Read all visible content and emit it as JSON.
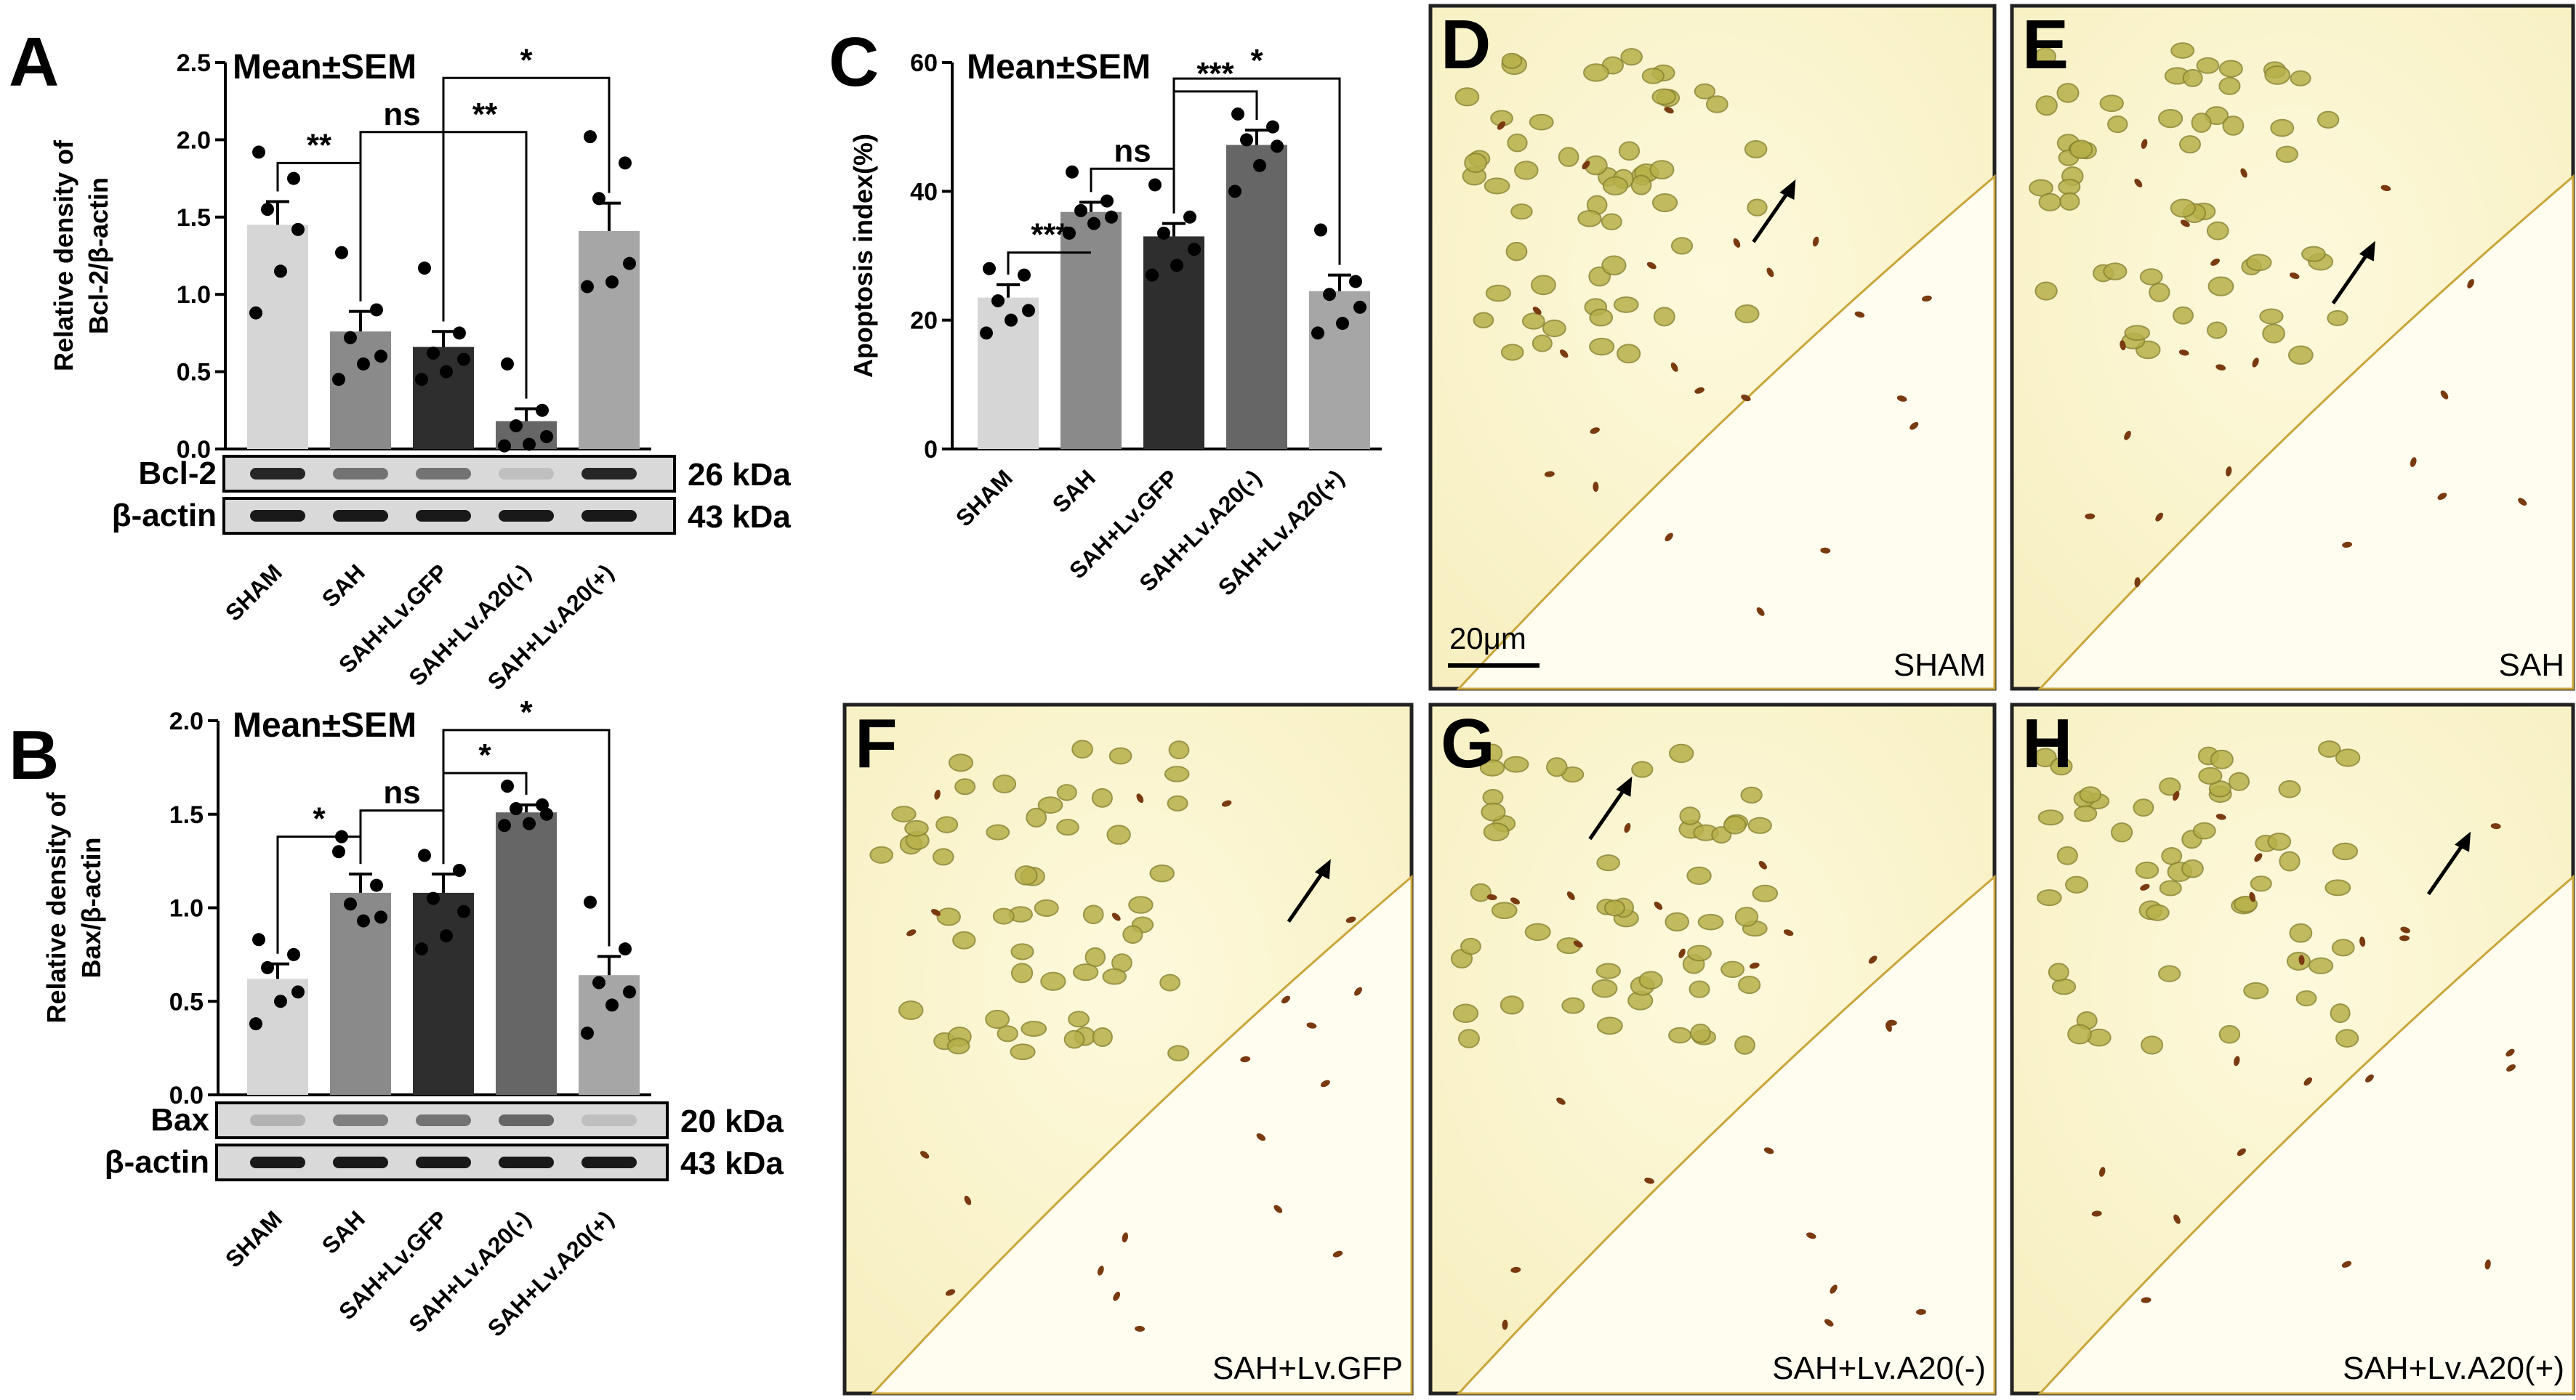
{
  "figure": {
    "letters": {
      "A": "A",
      "B": "B",
      "C": "C",
      "D": "D",
      "E": "E",
      "F": "F",
      "G": "G",
      "H": "H"
    },
    "scale_bar_label": "20μm",
    "micrographs": [
      {
        "panel": "D",
        "label": "SHAM"
      },
      {
        "panel": "E",
        "label": "SAH"
      },
      {
        "panel": "F",
        "label": "SAH+Lv.GFP"
      },
      {
        "panel": "G",
        "label": "SAH+Lv.A20(-)"
      },
      {
        "panel": "H",
        "label": "SAH+Lv.A20(+)"
      }
    ],
    "colors": {
      "bar_fills": [
        "#d6d6d6",
        "#8a8a8a",
        "#2e2e2e",
        "#666666",
        "#a6a6a6"
      ],
      "tissue": "#fbf6d0",
      "nucleus": "#b7b04a",
      "apoptotic": "#7a3a10"
    }
  },
  "chart_data": [
    {
      "panel": "A",
      "type": "bar",
      "annotation": "Mean±SEM",
      "ylabel_line1": "Relative density of",
      "ylabel_line2": "Bcl-2/β-actin",
      "ylim": [
        0,
        2.5
      ],
      "yticks": [
        "0.0",
        "0.5",
        "1.0",
        "1.5",
        "2.0",
        "2.5"
      ],
      "categories": [
        "SHAM",
        "SAH",
        "SAH+Lv.GFP",
        "SAH+Lv.A20(-)",
        "SAH+Lv.A20(+)"
      ],
      "values": [
        1.45,
        0.76,
        0.66,
        0.18,
        1.41
      ],
      "sem": [
        0.15,
        0.13,
        0.1,
        0.08,
        0.18
      ],
      "points": [
        [
          1.92,
          1.75,
          1.55,
          1.42,
          1.15,
          0.88
        ],
        [
          1.27,
          0.9,
          0.72,
          0.6,
          0.55,
          0.45
        ],
        [
          1.17,
          0.75,
          0.62,
          0.58,
          0.5,
          0.45
        ],
        [
          0.55,
          0.25,
          0.15,
          0.08,
          0.03,
          0.02
        ],
        [
          2.02,
          1.85,
          1.62,
          1.2,
          1.08,
          1.05
        ]
      ],
      "significance": [
        {
          "from": 0,
          "to": 1,
          "label": "**"
        },
        {
          "from": 1,
          "to": 2,
          "label": "ns"
        },
        {
          "from": 2,
          "to": 3,
          "label": "**"
        },
        {
          "from": 2,
          "to": 4,
          "label": "*"
        }
      ],
      "blot": {
        "rows": [
          {
            "label": "Bcl-2",
            "kda": "26 kDa",
            "intensities": [
              0.85,
              0.55,
              0.55,
              0.25,
              0.85
            ]
          },
          {
            "label": "β-actin",
            "kda": "43 kDa",
            "intensities": [
              0.9,
              0.9,
              0.9,
              0.9,
              0.9
            ]
          }
        ]
      }
    },
    {
      "panel": "B",
      "type": "bar",
      "annotation": "Mean±SEM",
      "ylabel_line1": "Relative density of",
      "ylabel_line2": "Bax/β-actin",
      "ylim": [
        0,
        2.0
      ],
      "yticks": [
        "0.0",
        "0.5",
        "1.0",
        "1.5",
        "2.0"
      ],
      "categories": [
        "SHAM",
        "SAH",
        "SAH+Lv.GFP",
        "SAH+Lv.A20(-)",
        "SAH+Lv.A20(+)"
      ],
      "values": [
        0.62,
        1.08,
        1.08,
        1.51,
        0.64
      ],
      "sem": [
        0.08,
        0.1,
        0.1,
        0.04,
        0.1
      ],
      "points": [
        [
          0.83,
          0.75,
          0.68,
          0.55,
          0.5,
          0.38
        ],
        [
          1.38,
          1.12,
          1.02,
          0.95,
          0.93,
          1.3
        ],
        [
          1.28,
          1.2,
          1.05,
          0.98,
          0.85,
          0.78
        ],
        [
          1.65,
          1.55,
          1.53,
          1.5,
          1.45,
          1.44
        ],
        [
          1.03,
          0.78,
          0.6,
          0.55,
          0.48,
          0.33
        ]
      ],
      "significance": [
        {
          "from": 0,
          "to": 1,
          "label": "*"
        },
        {
          "from": 1,
          "to": 2,
          "label": "ns"
        },
        {
          "from": 2,
          "to": 3,
          "label": "*"
        },
        {
          "from": 2,
          "to": 4,
          "label": "*"
        }
      ],
      "blot": {
        "rows": [
          {
            "label": "Bax",
            "kda": "20 kDa",
            "intensities": [
              0.3,
              0.5,
              0.55,
              0.6,
              0.25
            ]
          },
          {
            "label": "β-actin",
            "kda": "43 kDa",
            "intensities": [
              0.9,
              0.9,
              0.9,
              0.9,
              0.9
            ]
          }
        ]
      }
    },
    {
      "panel": "C",
      "type": "bar",
      "annotation": "Mean±SEM",
      "ylabel_line1": "Apoptosis index(%)",
      "ylabel_line2": "",
      "ylim": [
        0,
        60
      ],
      "yticks": [
        "0",
        "20",
        "40",
        "60"
      ],
      "categories": [
        "SHAM",
        "SAH",
        "SAH+Lv.GFP",
        "SAH+Lv.A20(-)",
        "SAH+Lv.A20(+)"
      ],
      "values": [
        23.5,
        36.8,
        33.0,
        47.2,
        24.5
      ],
      "sem": [
        2.0,
        1.5,
        2.0,
        2.3,
        2.5
      ],
      "points": [
        [
          28.0,
          27.0,
          23.0,
          21.5,
          20.0,
          18.0
        ],
        [
          43.0,
          38.5,
          37.0,
          36.0,
          35.0,
          33.5
        ],
        [
          41.0,
          36.0,
          33.5,
          31.0,
          28.5,
          27.0
        ],
        [
          52.0,
          50.0,
          48.0,
          47.0,
          44.0,
          40.0
        ],
        [
          34.0,
          26.0,
          24.0,
          22.0,
          19.5,
          18.0
        ]
      ],
      "significance": [
        {
          "from": 0,
          "to": 1,
          "label": "***"
        },
        {
          "from": 1,
          "to": 2,
          "label": "ns"
        },
        {
          "from": 2,
          "to": 3,
          "label": "***"
        },
        {
          "from": 2,
          "to": 4,
          "label": "*"
        }
      ]
    }
  ]
}
